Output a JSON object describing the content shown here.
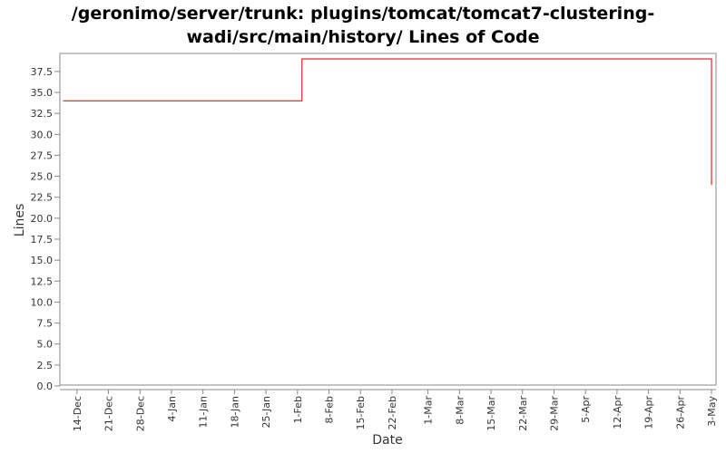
{
  "chart_data": {
    "type": "line",
    "title_line1": "/geronimo/server/trunk: plugins/tomcat/tomcat7-clustering-",
    "title_line2": "wadi/src/main/history/ Lines of Code",
    "xlabel": "Date",
    "ylabel": "Lines",
    "ylim": [
      0,
      39
    ],
    "xlim": [
      "2011-12-10",
      "2012-05-04"
    ],
    "y_ticks": [
      "0.0",
      "2.5",
      "5.0",
      "7.5",
      "10.0",
      "12.5",
      "15.0",
      "17.5",
      "20.0",
      "22.5",
      "25.0",
      "27.5",
      "30.0",
      "32.5",
      "35.0",
      "37.5"
    ],
    "x_ticks": [
      {
        "date": "2011-12-14",
        "label": "14-Dec"
      },
      {
        "date": "2011-12-21",
        "label": "21-Dec"
      },
      {
        "date": "2011-12-28",
        "label": "28-Dec"
      },
      {
        "date": "2012-01-04",
        "label": "4-Jan"
      },
      {
        "date": "2012-01-11",
        "label": "11-Jan"
      },
      {
        "date": "2012-01-18",
        "label": "18-Jan"
      },
      {
        "date": "2012-01-25",
        "label": "25-Jan"
      },
      {
        "date": "2012-02-01",
        "label": "1-Feb"
      },
      {
        "date": "2012-02-08",
        "label": "8-Feb"
      },
      {
        "date": "2012-02-15",
        "label": "15-Feb"
      },
      {
        "date": "2012-02-22",
        "label": "22-Feb"
      },
      {
        "date": "2012-03-01",
        "label": "1-Mar"
      },
      {
        "date": "2012-03-08",
        "label": "8-Mar"
      },
      {
        "date": "2012-03-15",
        "label": "15-Mar"
      },
      {
        "date": "2012-03-22",
        "label": "22-Mar"
      },
      {
        "date": "2012-03-29",
        "label": "29-Mar"
      },
      {
        "date": "2012-04-05",
        "label": "5-Apr"
      },
      {
        "date": "2012-04-12",
        "label": "12-Apr"
      },
      {
        "date": "2012-04-19",
        "label": "19-Apr"
      },
      {
        "date": "2012-04-26",
        "label": "26-Apr"
      },
      {
        "date": "2012-05-03",
        "label": "3-May"
      }
    ],
    "series": [
      {
        "color": "#cc0000",
        "step": true,
        "points": [
          {
            "x": "2011-12-11",
            "y": 34
          },
          {
            "x": "2012-02-02",
            "y": 39
          },
          {
            "x": "2012-05-03",
            "y": 24
          }
        ]
      }
    ],
    "grid": false,
    "legend": "none"
  }
}
